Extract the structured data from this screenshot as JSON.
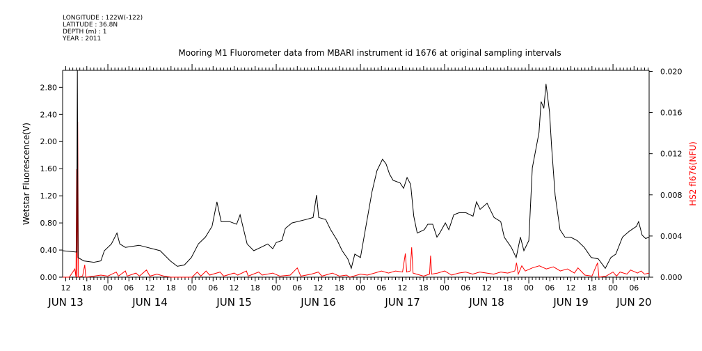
{
  "header": {
    "lines": [
      "LONGITUDE : 122W(-122)",
      "LATITUDE : 36.8N",
      "DEPTH (m) : 1",
      "YEAR : 2011"
    ]
  },
  "chart_data": {
    "type": "line",
    "title": "Mooring M1 Fluorometer data from MBARI instrument id 1676 at original sampling intervals",
    "xlabel": "",
    "x_units": "hours since JUN 13 00:00 2011",
    "xlim": [
      11.1,
      178.3
    ],
    "x_hour_ticks": [
      "12",
      "18",
      "00",
      "06",
      "12",
      "18",
      "00",
      "06",
      "12",
      "18",
      "00",
      "06",
      "12",
      "18",
      "00",
      "06",
      "12",
      "18",
      "00",
      "06",
      "12",
      "18",
      "00",
      "06",
      "12",
      "18",
      "00",
      "06"
    ],
    "x_day_labels": [
      {
        "label": "JUN 13",
        "hour": 12
      },
      {
        "label": "JUN 14",
        "hour": 36
      },
      {
        "label": "JUN 15",
        "hour": 60
      },
      {
        "label": "JUN 16",
        "hour": 84
      },
      {
        "label": "JUN 17",
        "hour": 108
      },
      {
        "label": "JUN 18",
        "hour": 132
      },
      {
        "label": "JUN 19",
        "hour": 156
      },
      {
        "label": "JUN 20",
        "hour": 174
      }
    ],
    "left_axis": {
      "label": "Wetstar Fluorescence(V)",
      "ylim": [
        0,
        3.05
      ],
      "ticks": [
        "0.00",
        "0.40",
        "0.80",
        "1.20",
        "1.60",
        "2.00",
        "2.40",
        "2.80"
      ],
      "color": "#000000"
    },
    "right_axis": {
      "label": "HS2 fl676(NFU)",
      "ylim": [
        0,
        0.0201
      ],
      "ticks": [
        "0.000",
        "0.004",
        "0.008",
        "0.012",
        "0.016",
        "0.020"
      ],
      "color": "#ff0000"
    },
    "series": [
      {
        "name": "Wetstar Fluorescence(V)",
        "axis": "left",
        "color": "#000000",
        "points": [
          [
            11.1,
            0.39
          ],
          [
            15.1,
            0.37
          ],
          [
            15.3,
            3.05
          ],
          [
            15.5,
            0.29
          ],
          [
            17.1,
            0.24
          ],
          [
            20.0,
            0.22
          ],
          [
            22.0,
            0.24
          ],
          [
            23.0,
            0.39
          ],
          [
            25.0,
            0.49
          ],
          [
            26.6,
            0.65
          ],
          [
            27.4,
            0.49
          ],
          [
            29.0,
            0.44
          ],
          [
            32.9,
            0.47
          ],
          [
            38.9,
            0.39
          ],
          [
            41.8,
            0.24
          ],
          [
            43.8,
            0.16
          ],
          [
            45.8,
            0.18
          ],
          [
            47.8,
            0.29
          ],
          [
            49.8,
            0.49
          ],
          [
            51.8,
            0.59
          ],
          [
            53.7,
            0.75
          ],
          [
            55.1,
            1.11
          ],
          [
            56.3,
            0.82
          ],
          [
            58.7,
            0.82
          ],
          [
            60.7,
            0.78
          ],
          [
            61.7,
            0.92
          ],
          [
            62.7,
            0.7
          ],
          [
            63.7,
            0.49
          ],
          [
            65.6,
            0.39
          ],
          [
            67.6,
            0.44
          ],
          [
            69.6,
            0.49
          ],
          [
            71.0,
            0.42
          ],
          [
            72.0,
            0.51
          ],
          [
            73.6,
            0.54
          ],
          [
            74.6,
            0.72
          ],
          [
            76.5,
            0.8
          ],
          [
            80.5,
            0.85
          ],
          [
            82.5,
            0.88
          ],
          [
            83.5,
            1.21
          ],
          [
            84.1,
            0.88
          ],
          [
            86.1,
            0.85
          ],
          [
            87.5,
            0.7
          ],
          [
            89.4,
            0.54
          ],
          [
            90.8,
            0.39
          ],
          [
            92.4,
            0.27
          ],
          [
            93.4,
            0.13
          ],
          [
            94.4,
            0.34
          ],
          [
            96.0,
            0.29
          ],
          [
            97.4,
            0.7
          ],
          [
            99.3,
            1.26
          ],
          [
            100.7,
            1.57
          ],
          [
            102.3,
            1.74
          ],
          [
            103.3,
            1.67
          ],
          [
            104.3,
            1.52
          ],
          [
            105.3,
            1.43
          ],
          [
            107.3,
            1.39
          ],
          [
            108.3,
            1.31
          ],
          [
            109.3,
            1.47
          ],
          [
            110.3,
            1.37
          ],
          [
            111.2,
            0.9
          ],
          [
            112.2,
            0.65
          ],
          [
            114.2,
            0.7
          ],
          [
            115.2,
            0.78
          ],
          [
            116.6,
            0.78
          ],
          [
            117.8,
            0.59
          ],
          [
            118.6,
            0.65
          ],
          [
            120.2,
            0.8
          ],
          [
            121.2,
            0.7
          ],
          [
            122.6,
            0.92
          ],
          [
            124.1,
            0.95
          ],
          [
            126.1,
            0.95
          ],
          [
            128.1,
            0.9
          ],
          [
            129.1,
            1.11
          ],
          [
            130.1,
            1.0
          ],
          [
            132.1,
            1.09
          ],
          [
            134.1,
            0.88
          ],
          [
            136.0,
            0.82
          ],
          [
            137.0,
            0.59
          ],
          [
            139.0,
            0.44
          ],
          [
            140.4,
            0.29
          ],
          [
            141.6,
            0.59
          ],
          [
            142.6,
            0.39
          ],
          [
            144.0,
            0.54
          ],
          [
            145.0,
            1.61
          ],
          [
            146.9,
            2.13
          ],
          [
            147.5,
            2.59
          ],
          [
            148.3,
            2.49
          ],
          [
            148.9,
            2.85
          ],
          [
            149.9,
            2.44
          ],
          [
            150.5,
            1.93
          ],
          [
            151.5,
            1.21
          ],
          [
            152.9,
            0.7
          ],
          [
            154.3,
            0.59
          ],
          [
            155.9,
            0.59
          ],
          [
            157.8,
            0.54
          ],
          [
            159.8,
            0.44
          ],
          [
            161.8,
            0.29
          ],
          [
            163.8,
            0.27
          ],
          [
            165.8,
            0.13
          ],
          [
            167.4,
            0.29
          ],
          [
            168.8,
            0.34
          ],
          [
            170.7,
            0.59
          ],
          [
            172.7,
            0.68
          ],
          [
            174.7,
            0.75
          ],
          [
            175.3,
            0.82
          ],
          [
            176.3,
            0.62
          ],
          [
            177.3,
            0.57
          ],
          [
            178.3,
            0.59
          ]
        ]
      },
      {
        "name": "HS2 fl676(NFU)",
        "axis": "right",
        "color": "#ff0000",
        "points": [
          [
            11.1,
            0.0
          ],
          [
            13.0,
            0.0
          ],
          [
            14.6,
            0.0008
          ],
          [
            14.9,
            0.0
          ],
          [
            15.1,
            0.0105
          ],
          [
            15.2,
            0.0
          ],
          [
            15.4,
            0.0151
          ],
          [
            15.6,
            0.0
          ],
          [
            16.8,
            0.0001
          ],
          [
            17.4,
            0.0012
          ],
          [
            17.7,
            0.0
          ],
          [
            20,
            0.0001
          ],
          [
            22,
            0.0002
          ],
          [
            24,
            0.0001
          ],
          [
            26.4,
            0.0005
          ],
          [
            27,
            0.0001
          ],
          [
            29,
            0.0006
          ],
          [
            29.5,
            0.0001
          ],
          [
            32,
            0.0004
          ],
          [
            33,
            0.0001
          ],
          [
            35,
            0.0007
          ],
          [
            36,
            0.0001
          ],
          [
            38,
            0.0003
          ],
          [
            40,
            0.0001
          ],
          [
            42,
            0.0
          ],
          [
            48,
            0.0
          ],
          [
            49.5,
            0.0005
          ],
          [
            50.5,
            0.0001
          ],
          [
            52,
            0.0006
          ],
          [
            53,
            0.0002
          ],
          [
            56,
            0.0005
          ],
          [
            57,
            0.0001
          ],
          [
            60,
            0.0004
          ],
          [
            61,
            0.0002
          ],
          [
            63.5,
            0.0006
          ],
          [
            64,
            0.0001
          ],
          [
            67,
            0.0005
          ],
          [
            68,
            0.0002
          ],
          [
            71,
            0.0004
          ],
          [
            73,
            0.0001
          ],
          [
            76,
            0.0002
          ],
          [
            78,
            0.0009
          ],
          [
            79,
            0.0001
          ],
          [
            82,
            0.0003
          ],
          [
            84,
            0.0005
          ],
          [
            85,
            0.0001
          ],
          [
            88,
            0.0004
          ],
          [
            90,
            0.0001
          ],
          [
            92,
            0.0002
          ],
          [
            93,
            0.0
          ],
          [
            96,
            0.0003
          ],
          [
            98,
            0.0002
          ],
          [
            100,
            0.0004
          ],
          [
            102,
            0.0006
          ],
          [
            104,
            0.0004
          ],
          [
            106,
            0.0006
          ],
          [
            108,
            0.0005
          ],
          [
            108.8,
            0.0023
          ],
          [
            109.2,
            0.0005
          ],
          [
            110.2,
            0.0006
          ],
          [
            110.6,
            0.0029
          ],
          [
            111.0,
            0.0004
          ],
          [
            112,
            0.0003
          ],
          [
            114,
            0.0001
          ],
          [
            115.7,
            0.0003
          ],
          [
            116.0,
            0.0021
          ],
          [
            116.3,
            0.0003
          ],
          [
            118,
            0.0004
          ],
          [
            120,
            0.0006
          ],
          [
            122,
            0.0002
          ],
          [
            124,
            0.0004
          ],
          [
            126,
            0.0005
          ],
          [
            128,
            0.0003
          ],
          [
            130,
            0.0005
          ],
          [
            132,
            0.0004
          ],
          [
            134,
            0.0003
          ],
          [
            136,
            0.0005
          ],
          [
            138,
            0.0004
          ],
          [
            140,
            0.0006
          ],
          [
            140.5,
            0.0014
          ],
          [
            141,
            0.0003
          ],
          [
            142,
            0.0011
          ],
          [
            143,
            0.0006
          ],
          [
            145,
            0.0009
          ],
          [
            147,
            0.0011
          ],
          [
            149,
            0.0008
          ],
          [
            151,
            0.001
          ],
          [
            153,
            0.0006
          ],
          [
            155,
            0.0008
          ],
          [
            157,
            0.0004
          ],
          [
            158,
            0.0009
          ],
          [
            160,
            0.0002
          ],
          [
            162,
            0.0001
          ],
          [
            163.6,
            0.0014
          ],
          [
            164,
            0.0
          ],
          [
            166,
            0.0001
          ],
          [
            168,
            0.0005
          ],
          [
            169,
            0.0001
          ],
          [
            170,
            0.0005
          ],
          [
            172,
            0.0003
          ],
          [
            173,
            0.0007
          ],
          [
            175,
            0.0004
          ],
          [
            176,
            0.0006
          ],
          [
            177,
            0.0003
          ],
          [
            178.3,
            0.0004
          ]
        ]
      }
    ]
  }
}
